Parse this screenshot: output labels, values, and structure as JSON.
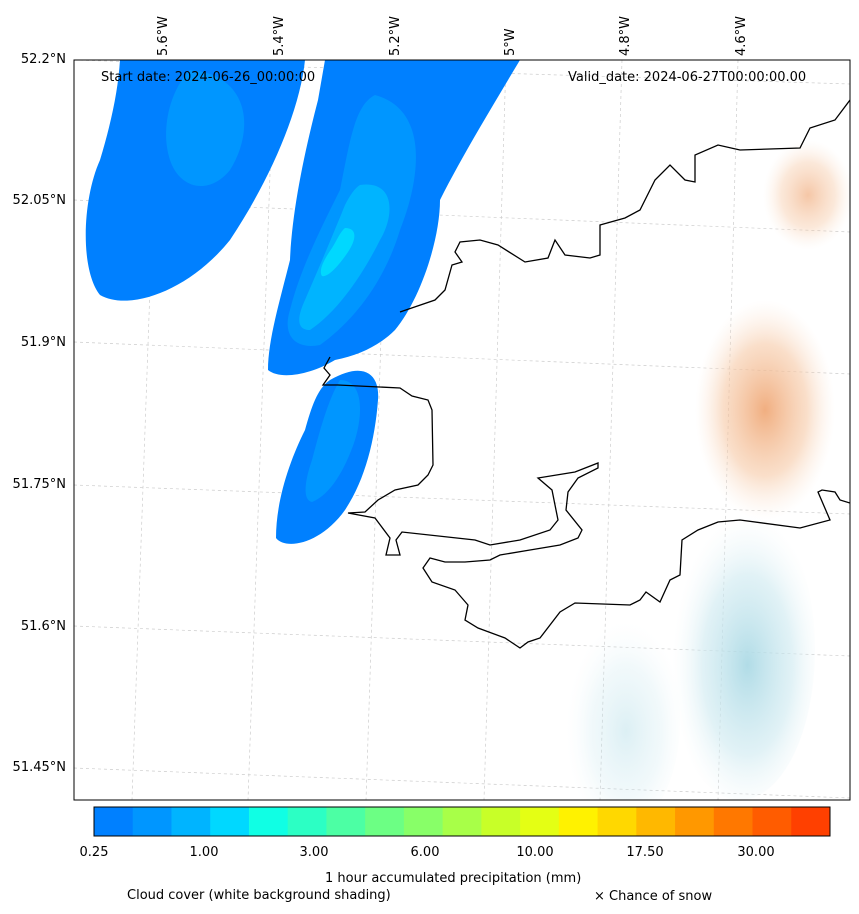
{
  "map": {
    "start_date": "Start date: 2024-06-26_00:00:00",
    "valid_date": "Valid_date: 2024-06-27T00:00:00.00",
    "lon_labels": [
      "5.6°W",
      "5.4°W",
      "5.2°W",
      "5°W",
      "4.8°W",
      "4.6°W"
    ],
    "lat_labels": [
      "52.2°N",
      "52.05°N",
      "51.9°N",
      "51.75°N",
      "51.6°N",
      "51.45°N"
    ]
  },
  "colorbar": {
    "tick_labels": [
      "0.25",
      "1.00",
      "3.00",
      "6.00",
      "10.00",
      "17.50",
      "30.00"
    ],
    "colors": [
      "#0080ff",
      "#0096ff",
      "#00b4ff",
      "#00d8ff",
      "#10ffe4",
      "#2cffc4",
      "#4cffa4",
      "#6cff84",
      "#88ff68",
      "#a8ff48",
      "#c8ff28",
      "#e4ff14",
      "#fff200",
      "#ffd800",
      "#ffb800",
      "#ff9800",
      "#ff7800",
      "#ff5c00",
      "#ff4000"
    ],
    "title": "1 hour accumulated precipitation (mm)"
  },
  "legend": {
    "cloud_cover": "Cloud cover (white background shading)",
    "snow": "× Chance of snow"
  }
}
